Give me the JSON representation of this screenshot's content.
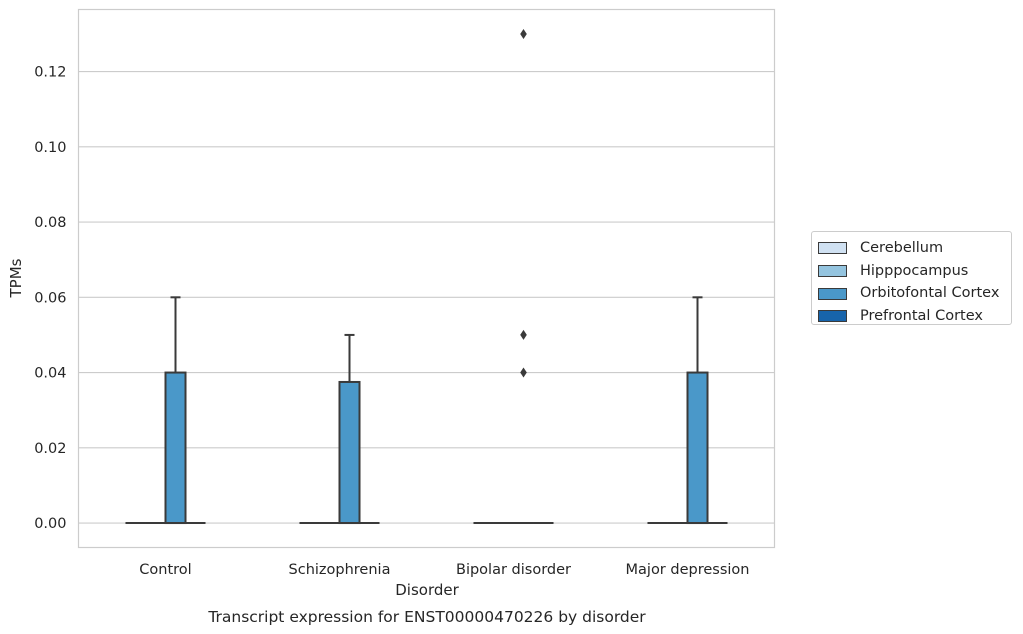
{
  "chart_data": {
    "type": "box",
    "title": "",
    "caption": "Transcript expression for ENST00000470226 by disorder",
    "xlabel": "Disorder",
    "ylabel": "TPMs",
    "ylim": [
      -0.0065,
      0.1365
    ],
    "yticks": [
      0.0,
      0.02,
      0.04,
      0.06,
      0.08,
      0.1,
      0.12
    ],
    "ytick_labels": [
      "0.00",
      "0.02",
      "0.04",
      "0.06",
      "0.08",
      "0.10",
      "0.12"
    ],
    "grid": true,
    "legend_position": "right",
    "categories": [
      "Control",
      "Schizophrenia",
      "Bipolar disorder",
      "Major depression"
    ],
    "series": [
      {
        "name": "Cerebellum",
        "color": "#d0e1f2",
        "boxes": [
          {
            "q1": 0,
            "median": 0,
            "q3": 0,
            "whisker_low": 0,
            "whisker_high": 0,
            "outliers": []
          },
          {
            "q1": 0,
            "median": 0,
            "q3": 0,
            "whisker_low": 0,
            "whisker_high": 0,
            "outliers": []
          },
          {
            "q1": 0,
            "median": 0,
            "q3": 0,
            "whisker_low": 0,
            "whisker_high": 0,
            "outliers": []
          },
          {
            "q1": 0,
            "median": 0,
            "q3": 0,
            "whisker_low": 0,
            "whisker_high": 0,
            "outliers": []
          }
        ]
      },
      {
        "name": "Hipppocampus",
        "color": "#94c4df",
        "boxes": [
          {
            "q1": 0,
            "median": 0,
            "q3": 0,
            "whisker_low": 0,
            "whisker_high": 0,
            "outliers": []
          },
          {
            "q1": 0,
            "median": 0,
            "q3": 0,
            "whisker_low": 0,
            "whisker_high": 0,
            "outliers": []
          },
          {
            "q1": 0,
            "median": 0,
            "q3": 0,
            "whisker_low": 0,
            "whisker_high": 0,
            "outliers": []
          },
          {
            "q1": 0,
            "median": 0,
            "q3": 0,
            "whisker_low": 0,
            "whisker_high": 0,
            "outliers": []
          }
        ]
      },
      {
        "name": "Orbitofontal Cortex",
        "color": "#4a98c9",
        "boxes": [
          {
            "q1": 0,
            "median": 0,
            "q3": 0.04,
            "whisker_low": 0,
            "whisker_high": 0.06,
            "outliers": []
          },
          {
            "q1": 0,
            "median": 0,
            "q3": 0.0375,
            "whisker_low": 0,
            "whisker_high": 0.05,
            "outliers": []
          },
          {
            "q1": 0,
            "median": 0,
            "q3": 0,
            "whisker_low": 0,
            "whisker_high": 0,
            "outliers": [
              0.13,
              0.05,
              0.04
            ]
          },
          {
            "q1": 0,
            "median": 0,
            "q3": 0.04,
            "whisker_low": 0,
            "whisker_high": 0.06,
            "outliers": []
          }
        ]
      },
      {
        "name": "Prefrontal Cortex",
        "color": "#1764ab",
        "boxes": [
          {
            "q1": 0,
            "median": 0,
            "q3": 0,
            "whisker_low": 0,
            "whisker_high": 0,
            "outliers": []
          },
          {
            "q1": 0,
            "median": 0,
            "q3": 0,
            "whisker_low": 0,
            "whisker_high": 0,
            "outliers": []
          },
          {
            "q1": 0,
            "median": 0,
            "q3": 0,
            "whisker_low": 0,
            "whisker_high": 0,
            "outliers": []
          },
          {
            "q1": 0,
            "median": 0,
            "q3": 0,
            "whisker_low": 0,
            "whisker_high": 0,
            "outliers": []
          }
        ]
      }
    ],
    "colors": {
      "gridline": "#cccccc",
      "axes_edge": "#cccccc",
      "box_edge": "#3a3a3a"
    }
  }
}
